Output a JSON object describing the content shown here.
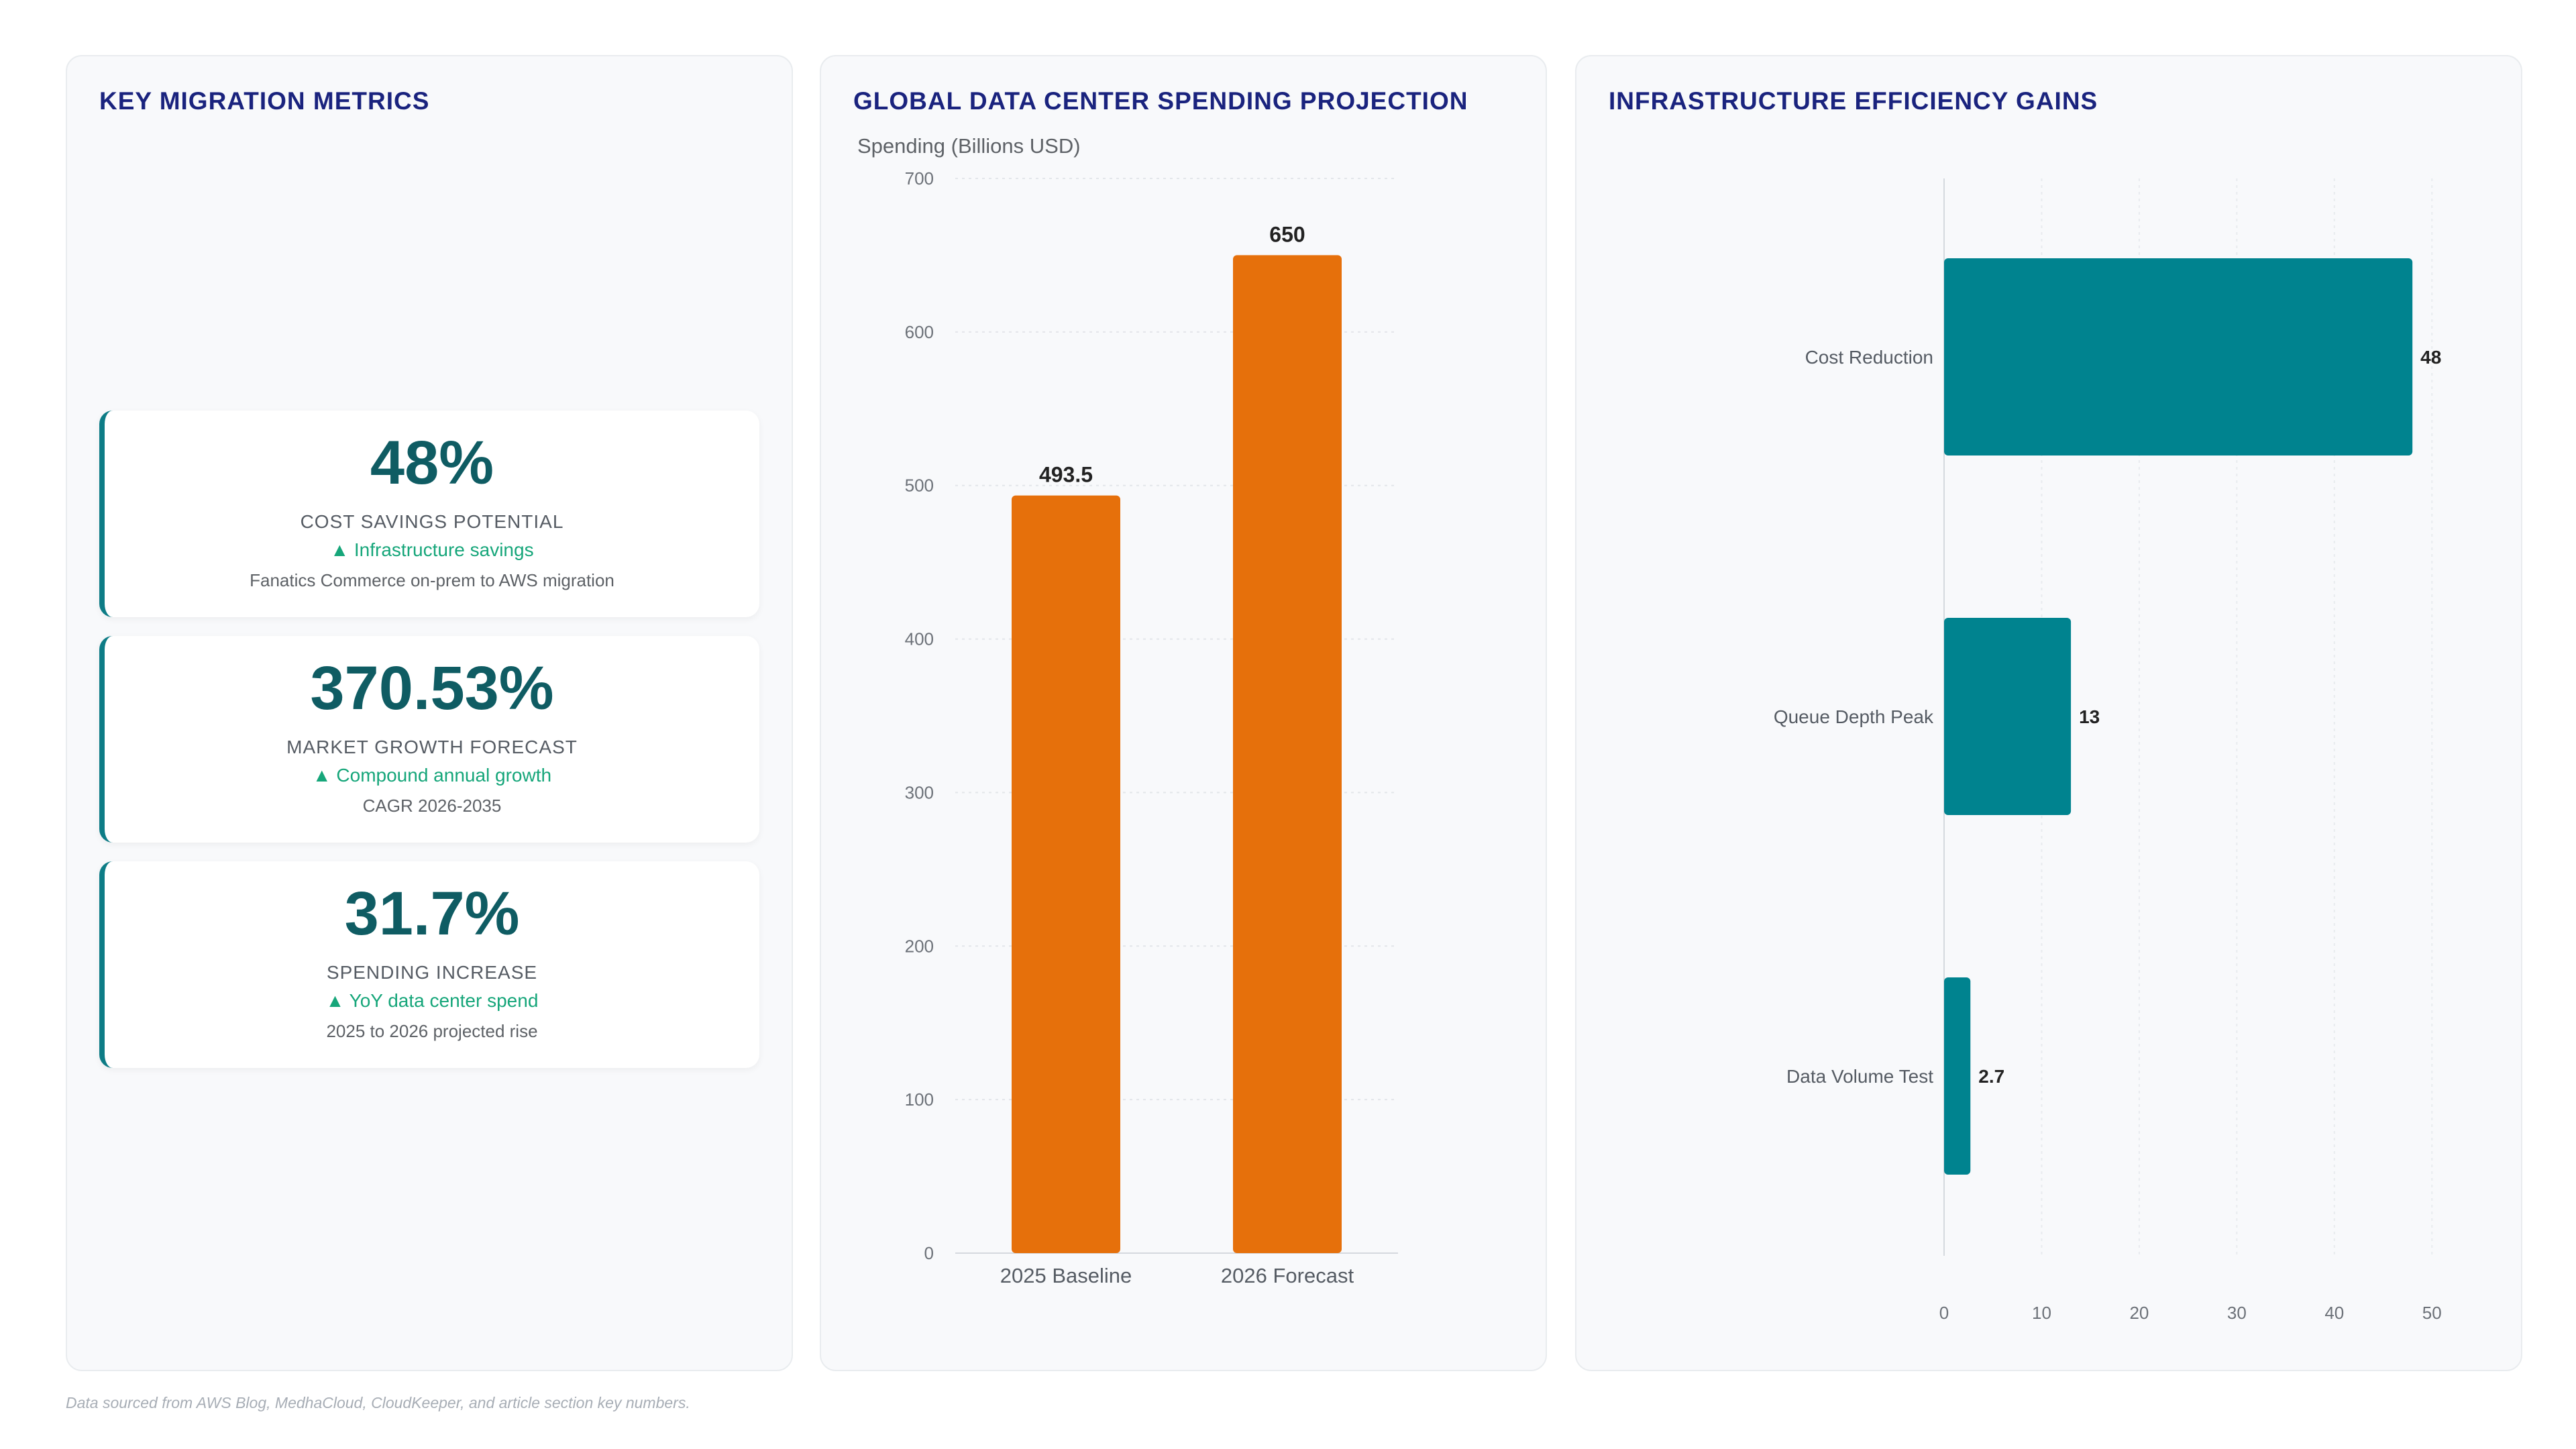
{
  "metrics_panel": {
    "title": "KEY MIGRATION METRICS",
    "cards": [
      {
        "value": "48%",
        "label": "COST SAVINGS POTENTIAL",
        "trend": "▲ Infrastructure savings",
        "note": "Fanatics Commerce on-prem to AWS migration"
      },
      {
        "value": "370.53%",
        "label": "MARKET GROWTH FORECAST",
        "trend": "▲ Compound annual growth",
        "note": "CAGR 2026-2035"
      },
      {
        "value": "31.7%",
        "label": "SPENDING INCREASE",
        "trend": "▲ YoY data center spend",
        "note": "2025 to 2026 projected rise"
      }
    ]
  },
  "spending_panel": {
    "title": "GLOBAL DATA CENTER SPENDING PROJECTION"
  },
  "efficiency_panel": {
    "title": "INFRASTRUCTURE EFFICIENCY GAINS"
  },
  "footnote": "Data sourced from AWS Blog, MedhaCloud, CloudKeeper, and article section key numbers.",
  "colors": {
    "bar_orange": "#e6700b",
    "bar_teal": "#00838f",
    "title_navy": "#1a237e",
    "metric_teal": "#0f5c63",
    "trend_green": "#16a67a"
  },
  "chart_data": [
    {
      "type": "bar",
      "title": "GLOBAL DATA CENTER SPENDING PROJECTION",
      "ylabel": "Spending (Billions USD)",
      "xlabel": "",
      "categories": [
        "2025 Baseline",
        "2026 Forecast"
      ],
      "values": [
        493.5,
        650
      ],
      "data_labels": [
        "493.5",
        "650"
      ],
      "ylim": [
        0,
        700
      ],
      "yticks": [
        0,
        100,
        200,
        300,
        400,
        500,
        600,
        700
      ],
      "grid": true,
      "orientation": "vertical"
    },
    {
      "type": "bar",
      "title": "INFRASTRUCTURE EFFICIENCY GAINS",
      "xlabel": "",
      "ylabel": "",
      "categories": [
        "Cost Reduction",
        "Queue Depth Peak",
        "Data Volume Test"
      ],
      "values": [
        48,
        13,
        2.7
      ],
      "data_labels": [
        "48",
        "13",
        "2.7"
      ],
      "xlim": [
        0,
        55
      ],
      "xticks": [
        0,
        10,
        20,
        30,
        40,
        50
      ],
      "grid": true,
      "orientation": "horizontal"
    }
  ]
}
